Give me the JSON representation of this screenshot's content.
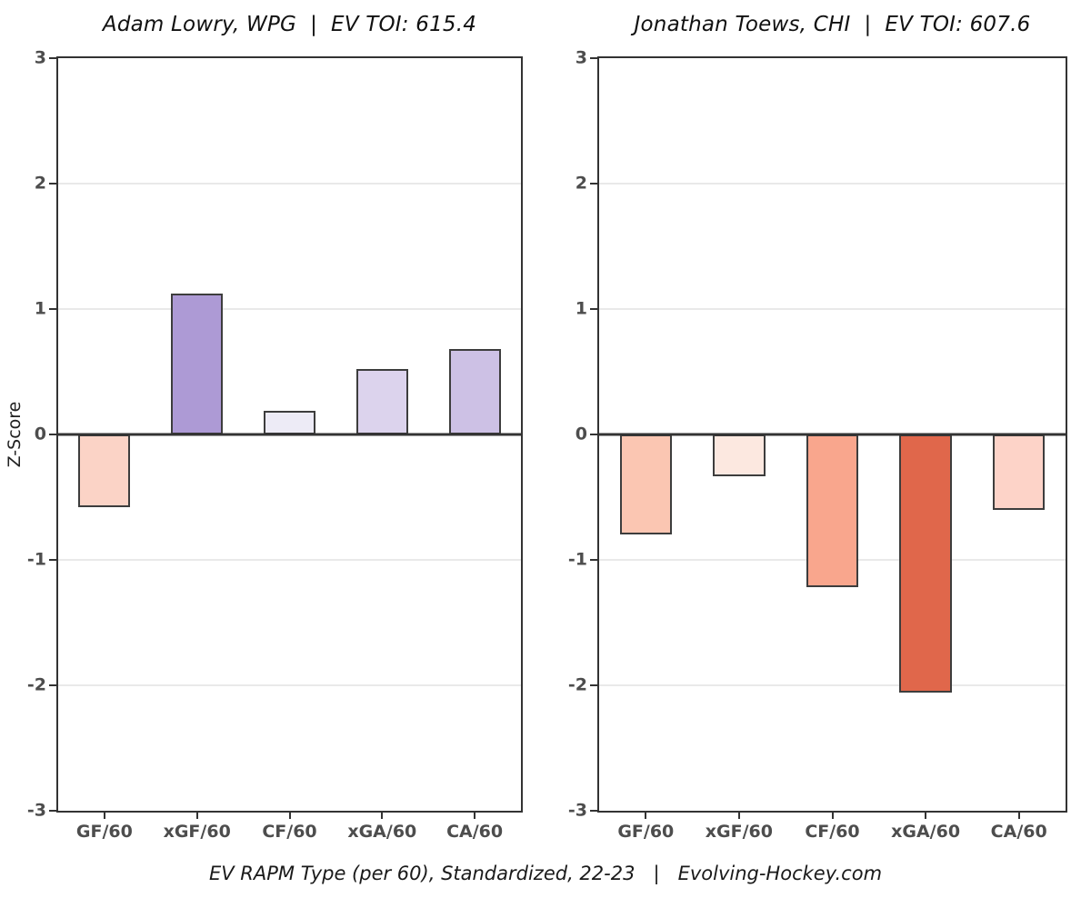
{
  "figure": {
    "caption": "EV RAPM Type (per 60), Standardized, 22-23   |   Evolving-Hockey.com",
    "background": "#ffffff"
  },
  "theme": {
    "axis_color": "#333333",
    "tick_label_color": "#4d4d4d",
    "gridline_color": "#e9e9e9",
    "bar_border_color": "#3d3d3d",
    "title_color": "#111111",
    "caption_color": "#1a1a1a"
  },
  "chart_data": [
    {
      "type": "bar",
      "title": "Adam Lowry, WPG  |  EV TOI: 615.4",
      "player": "Adam Lowry",
      "team": "WPG",
      "ev_toi": "615.4",
      "ylabel": "Z-Score",
      "categories": [
        "GF/60",
        "xGF/60",
        "CF/60",
        "xGA/60",
        "CA/60"
      ],
      "values": [
        -0.58,
        1.12,
        0.19,
        0.52,
        0.68
      ],
      "bar_colors": [
        "#fbd3c6",
        "#ad9ad5",
        "#edebf6",
        "#dcd3ed",
        "#cdc1e5"
      ],
      "ylim": [
        -3,
        3
      ],
      "yticks": [
        3,
        2,
        1,
        0,
        -1,
        -2,
        -3
      ],
      "grid": "horizontal-light-at-integers-dark-zero-line",
      "legend": "none"
    },
    {
      "type": "bar",
      "title": "Jonathan Toews, CHI  |  EV TOI: 607.6",
      "player": "Jonathan Toews",
      "team": "CHI",
      "ev_toi": "607.6",
      "ylabel": "",
      "categories": [
        "GF/60",
        "xGF/60",
        "CF/60",
        "xGA/60",
        "CA/60"
      ],
      "values": [
        -0.8,
        -0.33,
        -1.22,
        -2.06,
        -0.6
      ],
      "bar_colors": [
        "#fbc6b2",
        "#fce8e0",
        "#f9a68d",
        "#e0674b",
        "#fdd3c8"
      ],
      "ylim": [
        -3,
        3
      ],
      "yticks": [
        3,
        2,
        1,
        0,
        -1,
        -2,
        -3
      ],
      "grid": "horizontal-light-at-integers-dark-zero-line",
      "legend": "none"
    }
  ]
}
